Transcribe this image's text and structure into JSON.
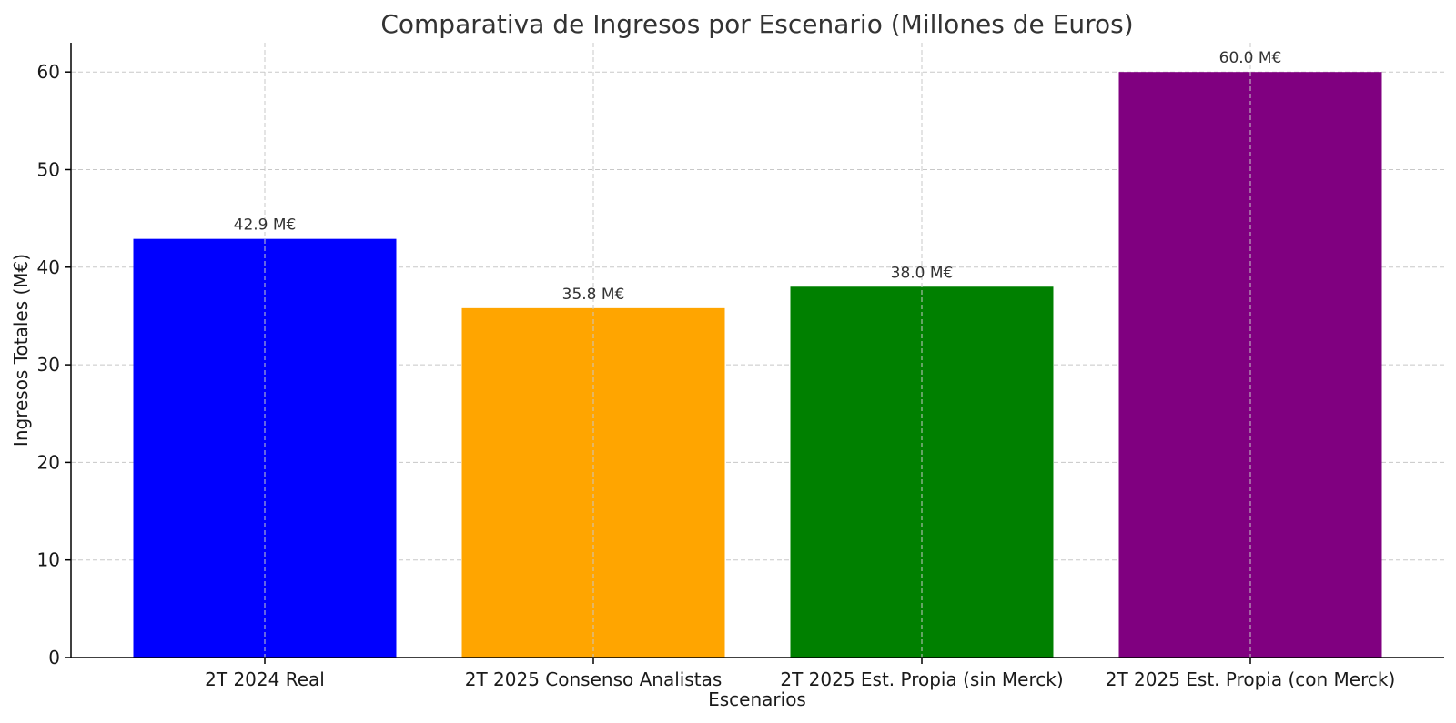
{
  "chart_data": {
    "type": "bar",
    "title": "Comparativa de Ingresos por Escenario (Millones de Euros)",
    "xlabel": "Escenarios",
    "ylabel": "Ingresos Totales (M€)",
    "ylim": [
      0,
      63
    ],
    "yticks": [
      0,
      10,
      20,
      30,
      40,
      50,
      60
    ],
    "grid": true,
    "categories": [
      "2T 2024 Real",
      "2T 2025 Consenso Analistas",
      "2T 2025 Est. Propia (sin Merck)",
      "2T 2025 Est. Propia (con Merck)"
    ],
    "values": [
      42.9,
      35.8,
      38.0,
      60.0
    ],
    "data_labels": [
      "42.9 M€",
      "35.8 M€",
      "38.0 M€",
      "60.0 M€"
    ],
    "colors": [
      "#0000ff",
      "#ffa500",
      "#008000",
      "#800080"
    ]
  }
}
